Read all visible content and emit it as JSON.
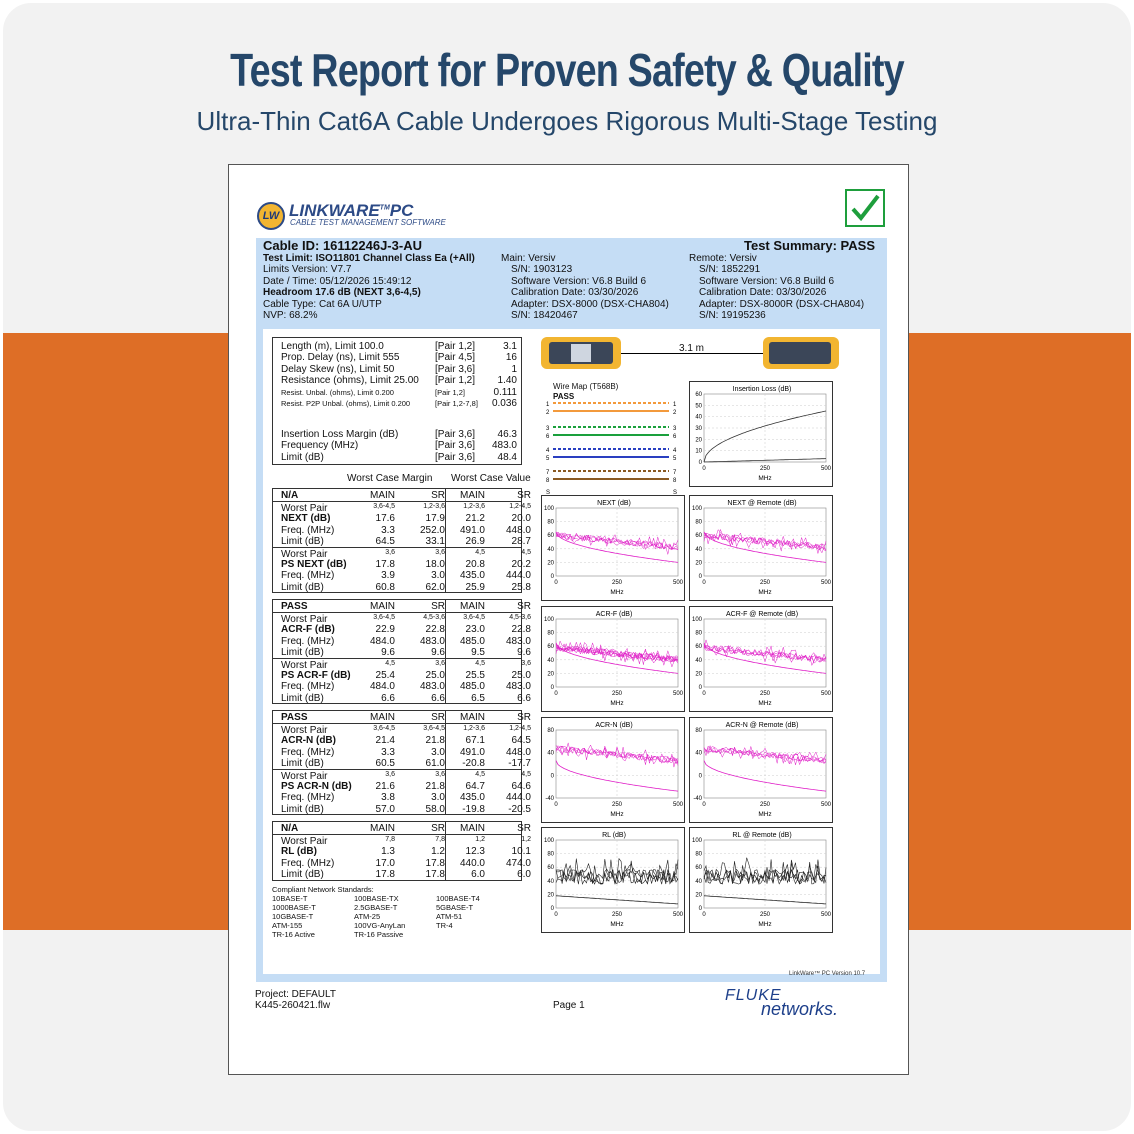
{
  "banner": {
    "title": "Test Report for Proven Safety & Quality",
    "subtitle": "Ultra-Thin Cat6A Cable Undergoes Rigorous Multi-Stage Testing"
  },
  "report": {
    "logo": {
      "mark": "LW",
      "name": "LINKWARE",
      "tm": "TM",
      "pc": "PC",
      "tagline": "CABLE TEST MANAGEMENT SOFTWARE"
    },
    "cable_id": "Cable ID: 16112246J-3-AU",
    "summary": "Test Summary: PASS",
    "left_info": [
      "Test Limit: ISO11801 Channel Class Ea (+All)",
      "Limits Version: V7.7",
      "Date / Time: 05/12/2026  15:49:12",
      "Headroom 17.6 dB (NEXT 3,6-4,5)",
      "Cable Type: Cat 6A U/UTP",
      "NVP: 68.2%"
    ],
    "main_info": [
      "Main: Versiv",
      "S/N: 1903123",
      "Software Version: V6.8 Build 6",
      "Calibration Date: 03/30/2026",
      "Adapter: DSX-8000 (DSX-CHA804)",
      "S/N: 18420467"
    ],
    "remote_info": [
      "Remote: Versiv",
      "S/N: 1852291",
      "Software Version: V6.8 Build 6",
      "Calibration Date: 03/30/2026",
      "Adapter: DSX-8000R (DSX-CHA804)",
      "S/N: 19195236"
    ],
    "measurements": [
      {
        "label": "Length (m), Limit 100.0",
        "pair": "[Pair 1,2]",
        "value": "3.1"
      },
      {
        "label": "Prop. Delay (ns), Limit 555",
        "pair": "[Pair 4,5]",
        "value": "16"
      },
      {
        "label": "Delay Skew (ns), Limit 50",
        "pair": "[Pair 3,6]",
        "value": "1"
      },
      {
        "label": "Resistance (ohms), Limit 25.00",
        "pair": "[Pair 1,2]",
        "value": "1.40"
      },
      {
        "label": "Resist. Unbal. (ohms), Limit 0.200",
        "pair": "[Pair 1,2]",
        "value": "0.111"
      },
      {
        "label": "Resist. P2P Unbal. (ohms), Limit 0.200",
        "pair": "[Pair 1,2-7,8]",
        "value": "0.036"
      }
    ],
    "measurements2": [
      {
        "label": "Insertion Loss Margin (dB)",
        "pair": "[Pair 3,6]",
        "value": "46.3"
      },
      {
        "label": "Frequency (MHz)",
        "pair": "[Pair 3,6]",
        "value": "483.0"
      },
      {
        "label": "Limit (dB)",
        "pair": "[Pair 3,6]",
        "value": "48.4"
      }
    ],
    "worst_case_margin": "Worst Case Margin",
    "worst_case_value": "Worst Case Value",
    "col_main": "MAIN",
    "col_sr": "SR",
    "tables": [
      {
        "status": "N/A",
        "rows": [
          {
            "label": "Worst Pair",
            "v": [
              "3,6-4,5",
              "1,2-3,6",
              "1,2-3,6",
              "1,2-4,5"
            ],
            "small": true
          },
          {
            "label": "NEXT (dB)",
            "v": [
              "17.6",
              "17.9",
              "21.2",
              "20.0"
            ],
            "bold": true
          },
          {
            "label": "Freq. (MHz)",
            "v": [
              "3.3",
              "252.0",
              "491.0",
              "448.0"
            ]
          },
          {
            "label": "Limit (dB)",
            "v": [
              "64.5",
              "33.1",
              "26.9",
              "28.7"
            ]
          },
          {
            "label": "Worst Pair",
            "v": [
              "3,6",
              "3,6",
              "4,5",
              "4,5"
            ],
            "small": true
          },
          {
            "label": "PS NEXT (dB)",
            "v": [
              "17.8",
              "18.0",
              "20.8",
              "20.2"
            ],
            "bold": true
          },
          {
            "label": "Freq. (MHz)",
            "v": [
              "3.9",
              "3.0",
              "435.0",
              "444.0"
            ]
          },
          {
            "label": "Limit (dB)",
            "v": [
              "60.8",
              "62.0",
              "25.9",
              "25.8"
            ]
          }
        ]
      },
      {
        "status": "PASS",
        "rows": [
          {
            "label": "Worst Pair",
            "v": [
              "3,6-4,5",
              "4,5-3,6",
              "3,6-4,5",
              "4,5-3,6"
            ],
            "small": true
          },
          {
            "label": "ACR-F (dB)",
            "v": [
              "22.9",
              "22.8",
              "23.0",
              "22.8"
            ],
            "bold": true
          },
          {
            "label": "Freq. (MHz)",
            "v": [
              "484.0",
              "483.0",
              "485.0",
              "483.0"
            ]
          },
          {
            "label": "Limit (dB)",
            "v": [
              "9.6",
              "9.6",
              "9.5",
              "9.6"
            ]
          },
          {
            "label": "Worst Pair",
            "v": [
              "4,5",
              "3,6",
              "4,5",
              "3,6"
            ],
            "small": true
          },
          {
            "label": "PS ACR-F (dB)",
            "v": [
              "25.4",
              "25.0",
              "25.5",
              "25.0"
            ],
            "bold": true
          },
          {
            "label": "Freq. (MHz)",
            "v": [
              "484.0",
              "483.0",
              "485.0",
              "483.0"
            ]
          },
          {
            "label": "Limit (dB)",
            "v": [
              "6.6",
              "6.6",
              "6.5",
              "6.6"
            ]
          }
        ]
      },
      {
        "status": "PASS",
        "rows": [
          {
            "label": "Worst Pair",
            "v": [
              "3,6-4,5",
              "3,6-4,5",
              "1,2-3,6",
              "1,2-4,5"
            ],
            "small": true
          },
          {
            "label": "ACR-N (dB)",
            "v": [
              "21.4",
              "21.8",
              "67.1",
              "64.5"
            ],
            "bold": true
          },
          {
            "label": "Freq. (MHz)",
            "v": [
              "3.3",
              "3.0",
              "491.0",
              "448.0"
            ]
          },
          {
            "label": "Limit (dB)",
            "v": [
              "60.5",
              "61.0",
              "-20.8",
              "-17.7"
            ]
          },
          {
            "label": "Worst Pair",
            "v": [
              "3,6",
              "3,6",
              "4,5",
              "4,5"
            ],
            "small": true
          },
          {
            "label": "PS ACR-N (dB)",
            "v": [
              "21.6",
              "21.8",
              "64.7",
              "64.6"
            ],
            "bold": true
          },
          {
            "label": "Freq. (MHz)",
            "v": [
              "3.8",
              "3.0",
              "435.0",
              "444.0"
            ]
          },
          {
            "label": "Limit (dB)",
            "v": [
              "57.0",
              "58.0",
              "-19.8",
              "-20.5"
            ]
          }
        ]
      },
      {
        "status": "N/A",
        "rows": [
          {
            "label": "Worst Pair",
            "v": [
              "7,8",
              "7,8",
              "1,2",
              "1,2"
            ],
            "small": true
          },
          {
            "label": "RL (dB)",
            "v": [
              "1.3",
              "1.2",
              "12.3",
              "10.1"
            ],
            "bold": true
          },
          {
            "label": "Freq. (MHz)",
            "v": [
              "17.0",
              "17.8",
              "440.0",
              "474.0"
            ]
          },
          {
            "label": "Limit (dB)",
            "v": [
              "17.8",
              "17.8",
              "6.0",
              "6.0"
            ]
          }
        ]
      }
    ],
    "standards_title": "Compliant Network Standards:",
    "standards": [
      [
        "10BASE-T",
        "100BASE-TX",
        "100BASE-T4"
      ],
      [
        "1000BASE-T",
        "2.5GBASE-T",
        "5GBASE-T"
      ],
      [
        "10GBASE-T",
        "ATM-25",
        "ATM-51"
      ],
      [
        "ATM-155",
        "100VG-AnyLan",
        "TR-4"
      ],
      [
        "TR-16 Active",
        "TR-16 Passive",
        ""
      ]
    ],
    "length_label": "3.1 m",
    "wiremap": {
      "title": "Wire Map (T568B)",
      "status": "PASS",
      "pins": [
        "1",
        "2",
        "3",
        "6",
        "4",
        "5",
        "7",
        "8",
        "S"
      ],
      "colors": [
        "#f39a3c",
        "#f39a3c",
        "#1aa03c",
        "#1aa03c",
        "#2a3fc0",
        "#2a3fc0",
        "#8a5a22",
        "#8a5a22"
      ]
    },
    "mhz": "MHz",
    "charts": [
      {
        "title": "Insertion Loss (dB)",
        "yticks": [
          "60",
          "50",
          "40",
          "30",
          "20",
          "10",
          "0"
        ],
        "xticks": [
          "0",
          "250",
          "500"
        ],
        "kind": "il"
      },
      {
        "title": "NEXT (dB)",
        "yticks": [
          "100",
          "80",
          "60",
          "40",
          "20",
          "0"
        ],
        "xticks": [
          "0",
          "250",
          "500"
        ],
        "kind": "next"
      },
      {
        "title": "NEXT @ Remote (dB)",
        "yticks": [
          "100",
          "80",
          "60",
          "40",
          "20",
          "0"
        ],
        "xticks": [
          "0",
          "250",
          "500"
        ],
        "kind": "next"
      },
      {
        "title": "ACR-F (dB)",
        "yticks": [
          "100",
          "80",
          "60",
          "40",
          "20",
          "0"
        ],
        "xticks": [
          "0",
          "250",
          "500"
        ],
        "kind": "acrf"
      },
      {
        "title": "ACR-F @ Remote (dB)",
        "yticks": [
          "100",
          "80",
          "60",
          "40",
          "20",
          "0"
        ],
        "xticks": [
          "0",
          "250",
          "500"
        ],
        "kind": "acrf2"
      },
      {
        "title": "ACR-N (dB)",
        "yticks": [
          "80",
          "40",
          "0",
          "-40"
        ],
        "xticks": [
          "0",
          "250",
          "500"
        ],
        "kind": "acrn"
      },
      {
        "title": "ACR-N @ Remote (dB)",
        "yticks": [
          "80",
          "40",
          "0",
          "-40"
        ],
        "xticks": [
          "0",
          "250",
          "500"
        ],
        "kind": "acrn"
      },
      {
        "title": "RL (dB)",
        "yticks": [
          "100",
          "80",
          "60",
          "40",
          "20",
          "0"
        ],
        "xticks": [
          "0",
          "250",
          "500"
        ],
        "kind": "rl"
      },
      {
        "title": "RL @ Remote (dB)",
        "yticks": [
          "100",
          "80",
          "60",
          "40",
          "20",
          "0"
        ],
        "xticks": [
          "0",
          "250",
          "500"
        ],
        "kind": "rl"
      }
    ],
    "version": "LinkWare™ PC Version 10.7",
    "project": "Project: DEFAULT",
    "file": "K445-260421.flw",
    "page": "Page 1",
    "fluke": "FLUKE",
    "networks": "networks.",
    "colors": {
      "accent": "#25476a",
      "orange": "#de6e26",
      "panel": "#c5ddf5",
      "check": "#1e9e3c",
      "magenta": "#e020c8"
    }
  }
}
